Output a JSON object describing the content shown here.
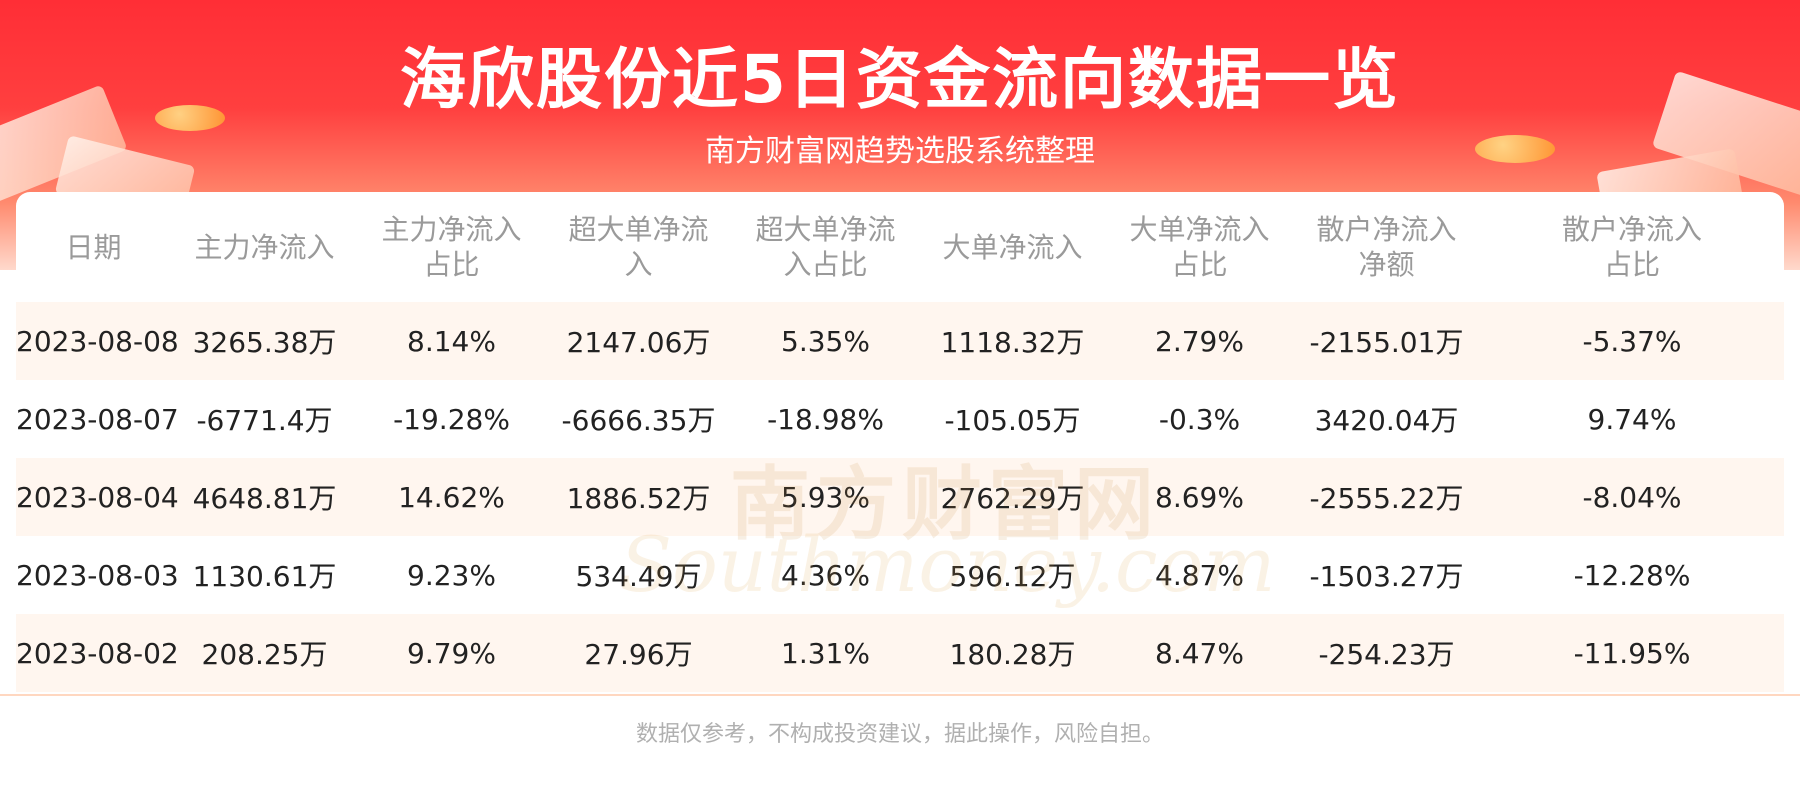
{
  "header": {
    "title": "海欣股份近5日资金流向数据一览",
    "subtitle": "南方财富网趋势选股系统整理"
  },
  "table": {
    "columns": [
      "日期",
      "主力净流入",
      "主力净流入\n占比",
      "超大单净流\n入",
      "超大单净流\n入占比",
      "大单净流入",
      "大单净流入\n占比",
      "散户净流入\n净额",
      "散户净流入\n占比"
    ],
    "rows": [
      [
        "2023-08-08",
        "3265.38万",
        "8.14%",
        "2147.06万",
        "5.35%",
        "1118.32万",
        "2.79%",
        "-2155.01万",
        "-5.37%"
      ],
      [
        "2023-08-07",
        "-6771.4万",
        "-19.28%",
        "-6666.35万",
        "-18.98%",
        "-105.05万",
        "-0.3%",
        "3420.04万",
        "9.74%"
      ],
      [
        "2023-08-04",
        "4648.81万",
        "14.62%",
        "1886.52万",
        "5.93%",
        "2762.29万",
        "8.69%",
        "-2555.22万",
        "-8.04%"
      ],
      [
        "2023-08-03",
        "1130.61万",
        "9.23%",
        "534.49万",
        "4.36%",
        "596.12万",
        "4.87%",
        "-1503.27万",
        "-12.28%"
      ],
      [
        "2023-08-02",
        "208.25万",
        "9.79%",
        "27.96万",
        "1.31%",
        "180.28万",
        "8.47%",
        "-254.23万",
        "-11.95%"
      ]
    ]
  },
  "watermark": {
    "cn": "南方财富网",
    "en": "Southmoney.com"
  },
  "footer": {
    "disclaimer": "数据仅参考，不构成投资建议，据此操作，风险自担。"
  },
  "colors": {
    "banner_red": "#ff2e36",
    "header_text": "#9a9a9a",
    "row_stripe": "#fff6ef",
    "footer_text": "#b0b0b0"
  }
}
